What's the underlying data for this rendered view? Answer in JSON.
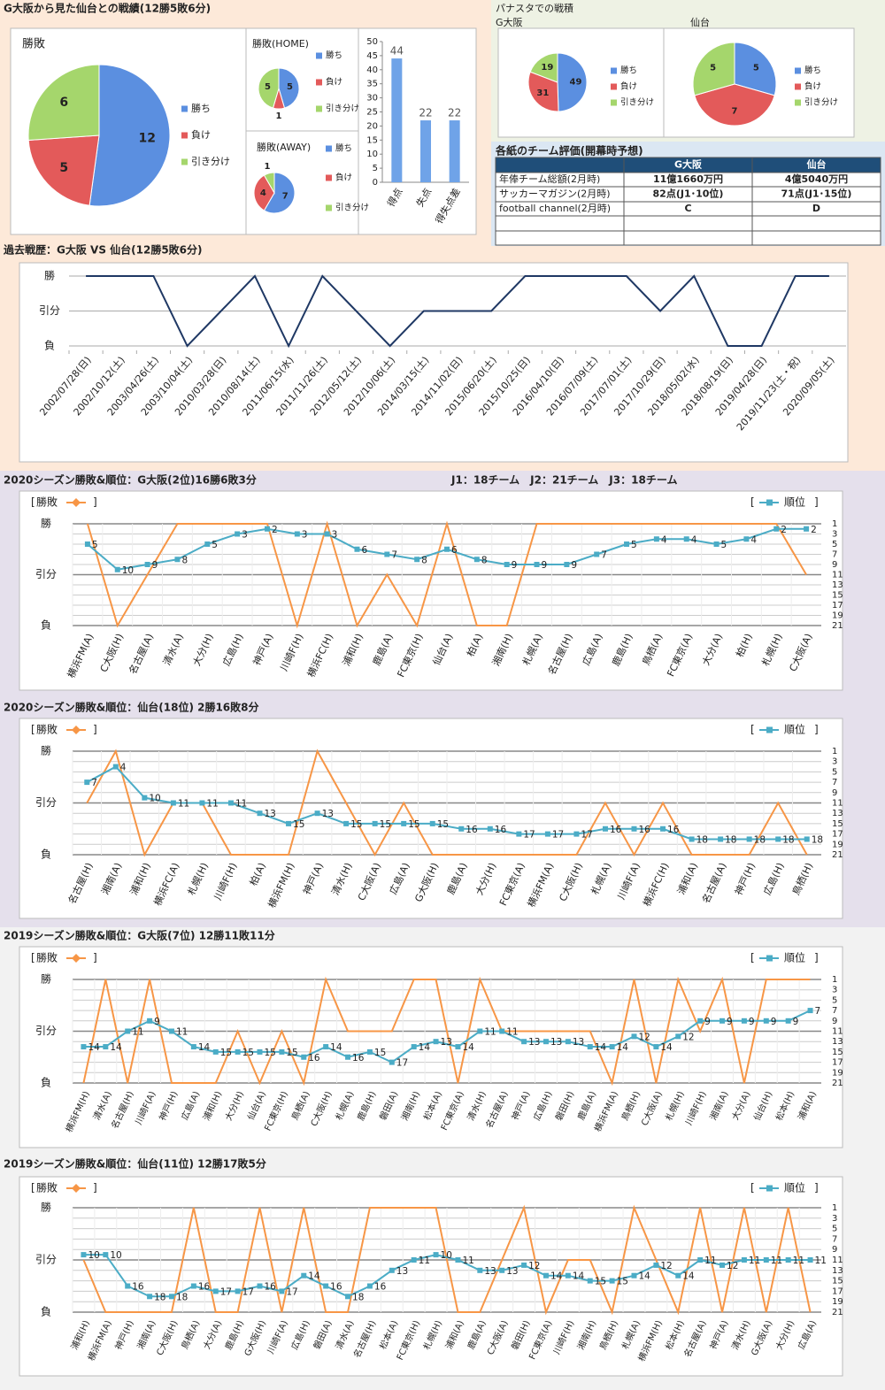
{
  "record_title": "G大阪から見た仙台との戦績(12勝5敗6分)",
  "panasta_title": "パナスタでの戦積",
  "table": {
    "title": "各紙のチーム評価(開幕時予想)",
    "header": [
      "G大阪",
      "仙台"
    ],
    "rows": [
      [
        "年俸チーム総額(2月時)",
        "11億1660万円",
        "4億5040万円"
      ],
      [
        "サッカーマガジン(2月時)",
        "82点(J1･10位)",
        "71点(J1･15位)"
      ],
      [
        "football channel(2月時)",
        "C",
        "D"
      ]
    ]
  },
  "chart_data": [
    {
      "type": "pie",
      "title": "勝敗",
      "categories": [
        "勝ち",
        "負け",
        "引き分け"
      ],
      "values": [
        12,
        5,
        6
      ],
      "colors": [
        "#5b8fe0",
        "#e35a5a",
        "#a5d66c"
      ]
    },
    {
      "type": "pie",
      "title": "勝敗(HOME)",
      "categories": [
        "勝ち",
        "負け",
        "引き分け"
      ],
      "values": [
        5,
        1,
        5
      ],
      "colors": [
        "#5b8fe0",
        "#e35a5a",
        "#a5d66c"
      ]
    },
    {
      "type": "pie",
      "title": "勝敗(AWAY)",
      "categories": [
        "勝ち",
        "負け",
        "引き分け"
      ],
      "values": [
        7,
        4,
        1
      ],
      "colors": [
        "#5b8fe0",
        "#e35a5a",
        "#a5d66c"
      ]
    },
    {
      "type": "bar",
      "categories": [
        "得点",
        "失点",
        "得失点差"
      ],
      "values": [
        44,
        22,
        22
      ],
      "color": "#6fa3e8",
      "ylim": [
        0,
        50
      ],
      "yticks": [
        0,
        5,
        10,
        15,
        20,
        25,
        30,
        35,
        40,
        45,
        50
      ]
    },
    {
      "type": "pie",
      "title": "G大阪",
      "categories": [
        "勝ち",
        "負け",
        "引き分け"
      ],
      "values": [
        49,
        31,
        19
      ],
      "colors": [
        "#5b8fe0",
        "#e35a5a",
        "#a5d66c"
      ]
    },
    {
      "type": "pie",
      "title": "仙台",
      "categories": [
        "勝ち",
        "負け",
        "引き分け"
      ],
      "values": [
        5,
        7,
        5
      ],
      "colors": [
        "#5b8fe0",
        "#e35a5a",
        "#a5d66c"
      ]
    },
    {
      "type": "line",
      "title": "過去戦歴：G大阪 VS 仙台(12勝5敗6分)",
      "categories": [
        "2002/07/28(日)",
        "2002/10/12(土)",
        "2003/04/26(土)",
        "2003/10/04(土)",
        "2010/03/28(日)",
        "2010/08/14(土)",
        "2011/06/15(水)",
        "2011/11/26(土)",
        "2012/05/12(土)",
        "2012/10/06(土)",
        "2014/03/15(土)",
        "2014/11/02(日)",
        "2015/06/20(土)",
        "2015/10/25(日)",
        "2016/04/10(日)",
        "2016/07/09(土)",
        "2017/07/01(土)",
        "2017/10/29(日)",
        "2018/05/02(水)",
        "2018/08/19(日)",
        "2019/04/28(日)",
        "2019/11/23(土・祝)",
        "2020/09/05(土)"
      ],
      "values": [
        1,
        1,
        1,
        -1,
        0,
        1,
        -1,
        1,
        0,
        -1,
        0,
        0,
        0,
        1,
        1,
        1,
        1,
        0,
        1,
        -1,
        -1,
        1,
        1
      ],
      "color": "#1f3864",
      "ylim": [
        -1,
        1
      ],
      "yticks": [
        {
          "value": 1,
          "label": "勝"
        },
        {
          "value": 0,
          "label": "引分"
        },
        {
          "value": -1,
          "label": "負"
        }
      ],
      "grid": true
    },
    {
      "type": "dual",
      "title": "2020シーズン勝敗&順位：G大阪(2位)16勝6敗3分",
      "annotation": "J1：18チーム　J2：21チーム　J3：18チーム",
      "legend_brackets": [
        "[",
        "]"
      ],
      "categories": [
        "横浜FM(A)",
        "C大阪(H)",
        "名古屋(A)",
        "清水(A)",
        "大分(H)",
        "広島(H)",
        "神戸(A)",
        "川崎F(H)",
        "横浜FC(H)",
        "浦和(H)",
        "鹿島(A)",
        "FC東京(H)",
        "仙台(A)",
        "柏(A)",
        "湘南(H)",
        "札幌(A)",
        "名古屋(H)",
        "広島(A)",
        "鹿島(H)",
        "鳥栖(A)",
        "FC東京(A)",
        "大分(A)",
        "柏(H)",
        "札幌(H)",
        "C大阪(A)"
      ],
      "series": [
        {
          "name": "勝敗",
          "color": "#f79646",
          "values": [
            1,
            -1,
            0,
            1,
            1,
            1,
            1,
            -1,
            1,
            -1,
            0,
            -1,
            1,
            -1,
            -1,
            1,
            1,
            1,
            1,
            1,
            1,
            1,
            1,
            1,
            0
          ]
        },
        {
          "name": "順位",
          "color": "#4bacc6",
          "axis": "y2",
          "marker": "square",
          "data_labels": true,
          "values": [
            5,
            10,
            9,
            8,
            5,
            3,
            2,
            3,
            3,
            6,
            7,
            8,
            6,
            8,
            9,
            9,
            9,
            7,
            5,
            4,
            4,
            5,
            4,
            2,
            2
          ]
        }
      ],
      "ylim": [
        -1,
        1
      ],
      "yticks": [
        {
          "value": 1,
          "label": "勝"
        },
        {
          "value": 0,
          "label": "引分"
        },
        {
          "value": -1,
          "label": "負"
        }
      ],
      "y2lim": [
        1,
        21
      ],
      "y2_reversed": true,
      "y2ticks": [
        1,
        3,
        5,
        7,
        9,
        11,
        13,
        15,
        17,
        19,
        21
      ],
      "grid": true
    },
    {
      "type": "dual",
      "title": "2020シーズン勝敗&順位：仙台(18位) 2勝16敗8分",
      "legend_brackets": [
        "[",
        "]"
      ],
      "categories": [
        "名古屋(H)",
        "湘南(A)",
        "浦和(H)",
        "横浜FC(A)",
        "札幌(H)",
        "川崎F(H)",
        "柏(A)",
        "横浜FM(H)",
        "神戸(A)",
        "清水(H)",
        "C大阪(A)",
        "広島(A)",
        "G大阪(H)",
        "鹿島(A)",
        "大分(H)",
        "FC東京(A)",
        "横浜FM(A)",
        "C大阪(H)",
        "札幌(A)",
        "川崎F(A)",
        "横浜FC(H)",
        "浦和(A)",
        "名古屋(A)",
        "神戸(H)",
        "広島(H)",
        "鳥栖(H)"
      ],
      "series": [
        {
          "name": "勝敗",
          "color": "#f79646",
          "values": [
            0,
            1,
            -1,
            0,
            0,
            -1,
            -1,
            -1,
            1,
            0,
            -1,
            0,
            -1,
            -1,
            -1,
            -1,
            -1,
            -1,
            0,
            -1,
            0,
            -1,
            -1,
            -1,
            0,
            -1
          ]
        },
        {
          "name": "順位",
          "color": "#4bacc6",
          "axis": "y2",
          "marker": "square",
          "data_labels": true,
          "values": [
            7,
            4,
            10,
            11,
            11,
            11,
            13,
            15,
            13,
            15,
            15,
            15,
            15,
            16,
            16,
            17,
            17,
            17,
            16,
            16,
            16,
            18,
            18,
            18,
            18,
            18
          ]
        }
      ],
      "ylim": [
        -1,
        1
      ],
      "yticks": [
        {
          "value": 1,
          "label": "勝"
        },
        {
          "value": 0,
          "label": "引分"
        },
        {
          "value": -1,
          "label": "負"
        }
      ],
      "y2lim": [
        1,
        21
      ],
      "y2_reversed": true,
      "y2ticks": [
        1,
        3,
        5,
        7,
        9,
        11,
        13,
        15,
        17,
        19,
        21
      ],
      "grid": true
    },
    {
      "type": "dual",
      "title": "2019シーズン勝敗&順位：G大阪(7位) 12勝11敗11分",
      "legend_brackets": [
        "[",
        "]"
      ],
      "categories": [
        "横浜FM(H)",
        "清水(A)",
        "名古屋(H)",
        "川崎F(A)",
        "神戸(H)",
        "広島(A)",
        "浦和(H)",
        "大分(H)",
        "仙台(A)",
        "FC東京(H)",
        "鳥栖(A)",
        "C大阪(H)",
        "札幌(A)",
        "鹿島(H)",
        "磐田(A)",
        "湘南(H)",
        "松本(A)",
        "FC東京(A)",
        "清水(H)",
        "名古屋(A)",
        "神戸(A)",
        "広島(H)",
        "磐田(H)",
        "鹿島(A)",
        "横浜FM(A)",
        "鳥栖(H)",
        "C大阪(A)",
        "札幌(H)",
        "川崎F(H)",
        "湘南(A)",
        "大分(A)",
        "仙台(H)",
        "松本(H)",
        "浦和(A)"
      ],
      "series": [
        {
          "name": "勝敗",
          "color": "#f79646",
          "values": [
            -1,
            1,
            -1,
            1,
            -1,
            -1,
            -1,
            0,
            -1,
            0,
            -1,
            1,
            0,
            0,
            0,
            1,
            1,
            -1,
            1,
            0,
            0,
            0,
            0,
            0,
            -1,
            1,
            -1,
            1,
            0,
            1,
            -1,
            1,
            1,
            1
          ]
        },
        {
          "name": "順位",
          "color": "#4bacc6",
          "axis": "y2",
          "marker": "square",
          "data_labels": true,
          "values": [
            14,
            14,
            11,
            9,
            11,
            14,
            15,
            15,
            15,
            15,
            16,
            14,
            16,
            15,
            17,
            14,
            13,
            14,
            11,
            11,
            13,
            13,
            13,
            14,
            14,
            12,
            14,
            12,
            9,
            9,
            9,
            9,
            9,
            7
          ]
        }
      ],
      "ylim": [
        -1,
        1
      ],
      "yticks": [
        {
          "value": 1,
          "label": "勝"
        },
        {
          "value": 0,
          "label": "引分"
        },
        {
          "value": -1,
          "label": "負"
        }
      ],
      "y2lim": [
        1,
        21
      ],
      "y2_reversed": true,
      "y2ticks": [
        1,
        3,
        5,
        7,
        9,
        11,
        13,
        15,
        17,
        19,
        21
      ],
      "grid": true
    },
    {
      "type": "dual",
      "title": "2019シーズン勝敗&順位：仙台(11位) 12勝17敗5分",
      "legend_brackets": [
        "[",
        "]"
      ],
      "categories": [
        "浦和(H)",
        "横浜FM(A)",
        "神戸(H)",
        "湘南(A)",
        "C大阪(H)",
        "鳥栖(A)",
        "大分(A)",
        "鹿島(H)",
        "G大阪(H)",
        "川崎F(A)",
        "広島(H)",
        "磐田(A)",
        "清水(A)",
        "名古屋(H)",
        "松本(A)",
        "FC東京(H)",
        "札幌(H)",
        "浦和(A)",
        "鹿島(A)",
        "C大阪(A)",
        "磐田(H)",
        "FC東京(A)",
        "川崎F(H)",
        "湘南(H)",
        "鳥栖(H)",
        "札幌(A)",
        "横浜FM(H)",
        "松本(H)",
        "名古屋(A)",
        "神戸(A)",
        "清水(H)",
        "G大阪(A)",
        "大分(H)",
        "広島(A)"
      ],
      "series": [
        {
          "name": "勝敗",
          "color": "#f79646",
          "values": [
            0,
            -1,
            -1,
            -1,
            -1,
            1,
            -1,
            -1,
            1,
            -1,
            1,
            -1,
            -1,
            1,
            1,
            1,
            1,
            -1,
            -1,
            0,
            1,
            -1,
            0,
            0,
            -1,
            1,
            0,
            -1,
            1,
            -1,
            1,
            -1,
            1,
            -1
          ]
        },
        {
          "name": "順位",
          "color": "#4bacc6",
          "axis": "y2",
          "marker": "square",
          "data_labels": true,
          "values": [
            10,
            10,
            16,
            18,
            18,
            16,
            17,
            17,
            16,
            17,
            14,
            16,
            18,
            16,
            13,
            11,
            10,
            11,
            13,
            13,
            12,
            14,
            14,
            15,
            15,
            14,
            12,
            14,
            11,
            12,
            11,
            11,
            11,
            11
          ]
        }
      ],
      "ylim": [
        -1,
        1
      ],
      "yticks": [
        {
          "value": 1,
          "label": "勝"
        },
        {
          "value": 0,
          "label": "引分"
        },
        {
          "value": -1,
          "label": "負"
        }
      ],
      "y2lim": [
        1,
        21
      ],
      "y2_reversed": true,
      "y2ticks": [
        1,
        3,
        5,
        7,
        9,
        11,
        13,
        15,
        17,
        19,
        21
      ],
      "grid": true
    }
  ]
}
